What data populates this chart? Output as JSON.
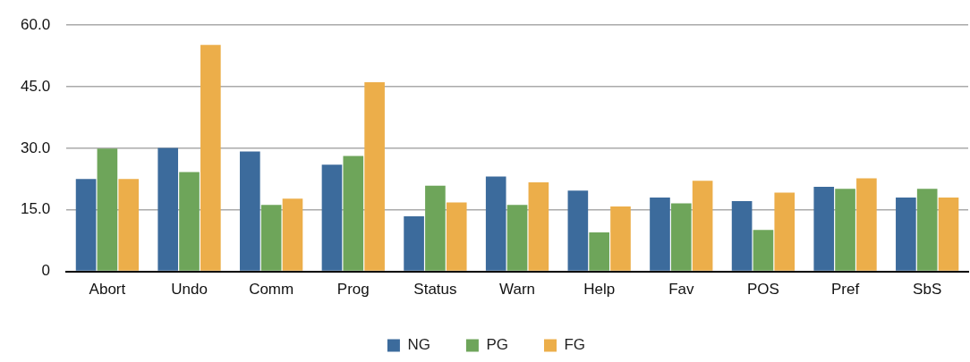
{
  "chart_data": {
    "type": "bar",
    "categories": [
      "Abort",
      "Undo",
      "Comm",
      "Prog",
      "Status",
      "Warn",
      "Help",
      "Fav",
      "POS",
      "Pref",
      "SbS"
    ],
    "series": [
      {
        "name": "NG",
        "color": "#3c6b9c",
        "values": [
          22.5,
          30.1,
          29.2,
          26.0,
          13.4,
          23.1,
          19.7,
          18.0,
          17.1,
          20.6,
          18.0
        ]
      },
      {
        "name": "PG",
        "color": "#6ea55a",
        "values": [
          29.9,
          24.2,
          16.2,
          28.1,
          20.9,
          16.2,
          9.5,
          16.6,
          10.1,
          20.1,
          20.1
        ]
      },
      {
        "name": "FG",
        "color": "#ecae4a",
        "values": [
          22.5,
          55.2,
          17.7,
          46.1,
          16.8,
          21.7,
          15.8,
          22.1,
          19.2,
          22.7,
          18.0
        ]
      }
    ],
    "ylim": [
      0,
      60
    ],
    "yticks": [
      {
        "value": 0,
        "label": "0"
      },
      {
        "value": 15,
        "label": "15.0"
      },
      {
        "value": 30,
        "label": "30.0"
      },
      {
        "value": 45,
        "label": "45.0"
      },
      {
        "value": 60,
        "label": "60.0"
      }
    ],
    "grid": "y",
    "legend": "bottom"
  }
}
